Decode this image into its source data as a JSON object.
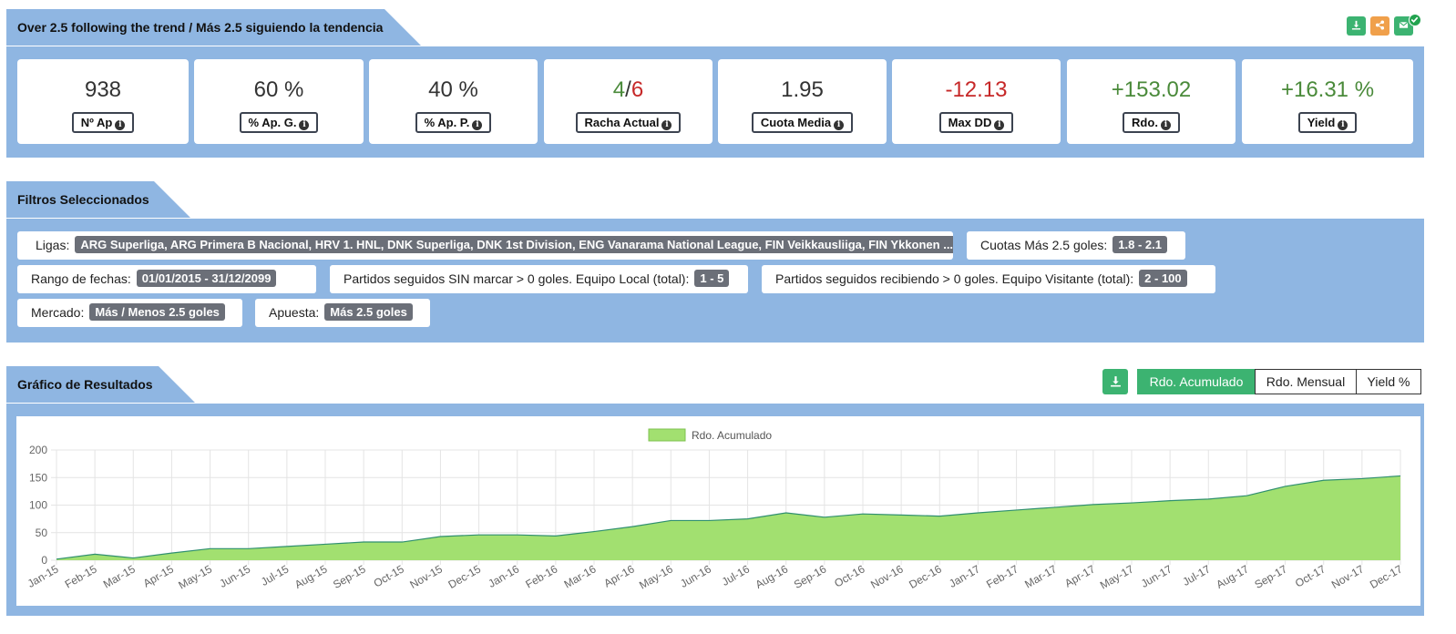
{
  "header": {
    "title": "Over 2.5 following the trend / Más 2.5 siguiendo la tendencia",
    "actions": [
      {
        "name": "download-icon",
        "color": "#3cb371"
      },
      {
        "name": "share-icon",
        "color": "#f0a04b"
      },
      {
        "name": "email-icon",
        "color": "#3cb371"
      }
    ]
  },
  "stats": [
    {
      "value": "938",
      "label": "Nº Ap",
      "tone": "neutral"
    },
    {
      "value": "60 %",
      "label": "% Ap. G.",
      "tone": "neutral"
    },
    {
      "value": "40 %",
      "label": "% Ap. P.",
      "tone": "neutral"
    },
    {
      "value_win": "4",
      "sep": "/",
      "value_loss": "6",
      "label": "Racha Actual",
      "tone": "split"
    },
    {
      "value": "1.95",
      "label": "Cuota Media",
      "tone": "neutral"
    },
    {
      "value": "-12.13",
      "label": "Max DD",
      "tone": "negative"
    },
    {
      "value": "+153.02",
      "label": "Rdo.",
      "tone": "positive"
    },
    {
      "value": "+16.31 %",
      "label": "Yield",
      "tone": "positive"
    }
  ],
  "filters": {
    "title": "Filtros Seleccionados",
    "ligas": {
      "label": "Ligas:",
      "value": "ARG Superliga, ARG Primera B Nacional, HRV 1. HNL, DNK Superliga, DNK 1st Division, ENG Vanarama National League, FIN Veikkausliiga, FIN Ykkonen ..."
    },
    "cuotas": {
      "label": "Cuotas Más 2.5 goles:",
      "value": "1.8 - 2.1"
    },
    "fechas": {
      "label": "Rango de fechas:",
      "value": "01/01/2015 - 31/12/2099"
    },
    "local": {
      "label": "Partidos seguidos SIN marcar > 0 goles. Equipo Local (total):",
      "value": "1 - 5"
    },
    "visitante": {
      "label": "Partidos seguidos recibiendo > 0 goles. Equipo Visitante (total):",
      "value": "2 - 100"
    },
    "mercado": {
      "label": "Mercado:",
      "value": "Más / Menos 2.5 goles"
    },
    "apuesta": {
      "label": "Apuesta:",
      "value": "Más 2.5 goles"
    }
  },
  "results": {
    "title": "Gráfico de Resultados",
    "tabs": [
      "Rdo. Acumulado",
      "Rdo. Mensual",
      "Yield %"
    ],
    "active_tab": 0
  },
  "colors": {
    "panel": "#8fb6e2",
    "accent_green": "#3cb371",
    "fill": "#a2e070",
    "line": "#2f8f6f"
  },
  "chart_data": {
    "type": "area",
    "legend": "Rdo. Acumulado",
    "legend_position": "top",
    "grid": true,
    "x": [
      "Jan-15",
      "Feb-15",
      "Mar-15",
      "Apr-15",
      "May-15",
      "Jun-15",
      "Jul-15",
      "Aug-15",
      "Sep-15",
      "Oct-15",
      "Nov-15",
      "Dec-15",
      "Jan-16",
      "Feb-16",
      "Mar-16",
      "Apr-16",
      "May-16",
      "Jun-16",
      "Jul-16",
      "Aug-16",
      "Sep-16",
      "Oct-16",
      "Nov-16",
      "Dec-16",
      "Jan-17",
      "Feb-17",
      "Mar-17",
      "Apr-17",
      "May-17",
      "Jun-17",
      "Jul-17",
      "Aug-17",
      "Sep-17",
      "Oct-17",
      "Nov-17",
      "Dec-17"
    ],
    "values": [
      2,
      11,
      4,
      13,
      21,
      21,
      25,
      29,
      33,
      33,
      43,
      46,
      46,
      44,
      52,
      61,
      72,
      72,
      75,
      86,
      78,
      84,
      82,
      80,
      86,
      91,
      96,
      101,
      104,
      108,
      111,
      117,
      134,
      145,
      148,
      153
    ],
    "yticks": [
      0,
      50,
      100,
      150,
      200
    ],
    "ylim": [
      0,
      200
    ]
  }
}
